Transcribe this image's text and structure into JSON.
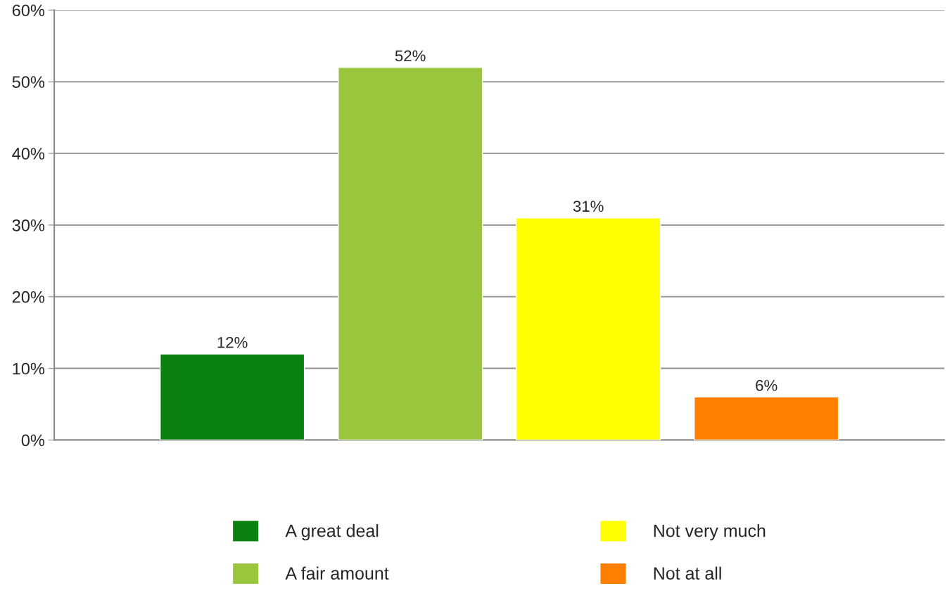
{
  "chart_data": {
    "type": "bar",
    "categories": [
      null,
      null,
      null,
      null
    ],
    "series": [
      {
        "name": "A great deal",
        "color": "#0a800f",
        "values": [
          12,
          null,
          null,
          null
        ],
        "value_labels": [
          "12%",
          null,
          null,
          null
        ]
      },
      {
        "name": "A fair amount",
        "color": "#99c63c",
        "values": [
          null,
          52,
          null,
          null
        ],
        "value_labels": [
          null,
          "52%",
          null,
          null
        ]
      },
      {
        "name": "Not very much",
        "color": "#ffff00",
        "values": [
          null,
          null,
          31,
          null
        ],
        "value_labels": [
          null,
          null,
          "31%",
          null
        ]
      },
      {
        "name": "Not at all",
        "color": "#ff8000",
        "values": [
          null,
          null,
          null,
          6
        ],
        "value_labels": [
          null,
          null,
          null,
          "6%"
        ]
      }
    ],
    "ylim": [
      0,
      60
    ],
    "yticks": [
      {
        "value": 0,
        "label": "0%"
      },
      {
        "value": 10,
        "label": "10%"
      },
      {
        "value": 20,
        "label": "20%"
      },
      {
        "value": 30,
        "label": "30%"
      },
      {
        "value": 40,
        "label": "40%"
      },
      {
        "value": 50,
        "label": "50%"
      },
      {
        "value": 60,
        "label": "60%"
      }
    ],
    "grid": "y",
    "legend": "bottom"
  }
}
